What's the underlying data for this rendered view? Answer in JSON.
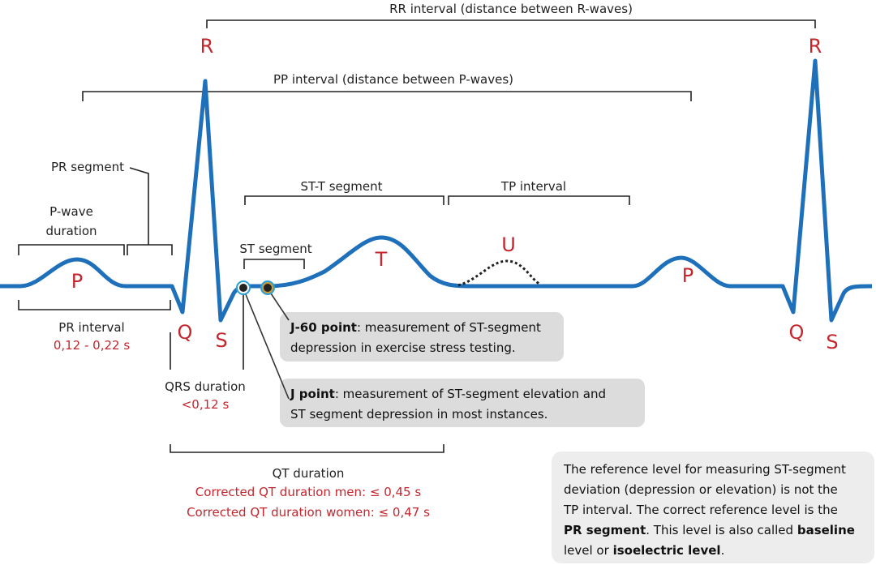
{
  "colors": {
    "trace": "#1f70ba",
    "wave_label": "#c4262e",
    "callout": "#dcdcdc",
    "note": "#ededed"
  },
  "waves": {
    "r1": "R",
    "r2": "R",
    "q1": "Q",
    "q2": "Q",
    "s1": "S",
    "s2": "S",
    "p1": "P",
    "p2": "P",
    "t": "T",
    "u": "U"
  },
  "labels": {
    "rr": "RR interval (distance between R-waves)",
    "pp": "PP interval (distance between P-waves)",
    "pr_segment": "PR segment",
    "p_wave_1": "P-wave",
    "p_wave_2": "duration",
    "pr_interval": "PR interval",
    "pr_interval_value": "0,12 - 0,22 s",
    "st_t": "ST-T segment",
    "tp": "TP interval",
    "st_segment": "ST segment",
    "qrs": "QRS duration",
    "qrs_value": "<0,12 s",
    "qt": "QT duration",
    "qt_men": "Corrected QT duration men: ≤ 0,45 s",
    "qt_women": "Corrected QT duration women: ≤ 0,47 s"
  },
  "callouts": {
    "j60": {
      "bold": "J-60 point",
      "line1": ": measurement of ST-segment",
      "line2": "depression in exercise stress testing."
    },
    "j": {
      "bold": "J point",
      "line1": ": measurement of ST-segment elevation and",
      "line2": "ST segment depression in most instances."
    }
  },
  "note": {
    "l1": "The reference level for measuring ST-segment",
    "l2": "deviation (depression or elevation) is not the",
    "l3": "TP interval. The correct reference level is the",
    "l4b": "PR segment",
    "l4": ". This level is also called ",
    "l4b2": "baseline",
    "l5": "level or ",
    "l5b": "isoelectric level",
    "l5e": "."
  }
}
